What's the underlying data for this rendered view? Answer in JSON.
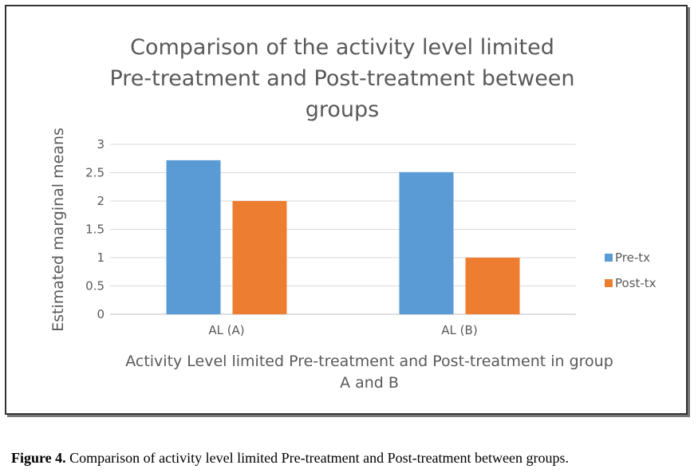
{
  "chart_data": {
    "type": "bar",
    "title_lines": [
      "Comparison of the activity level limited",
      "Pre-treatment and Post-treatment between",
      "groups"
    ],
    "xlabel_lines": [
      "Activity Level limited Pre-treatment and Post-treatment in group",
      "A and B"
    ],
    "ylabel": "Estimated marginal means",
    "categories": [
      "AL (A)",
      "AL (B)"
    ],
    "series": [
      {
        "name": "Pre-tx",
        "color": "#5B9BD5",
        "values": [
          2.72,
          2.51
        ]
      },
      {
        "name": "Post-tx",
        "color": "#ED7D31",
        "values": [
          2.0,
          1.0
        ]
      }
    ],
    "ylim": [
      0,
      3
    ],
    "yticks": [
      "0",
      "0.5",
      "1",
      "1.5",
      "2",
      "2.5",
      "3"
    ],
    "grid": true,
    "legend_position": "right"
  },
  "caption": {
    "label": "Figure 4.",
    "text": " Comparison of activity level limited Pre-treatment and Post-treatment between groups."
  }
}
